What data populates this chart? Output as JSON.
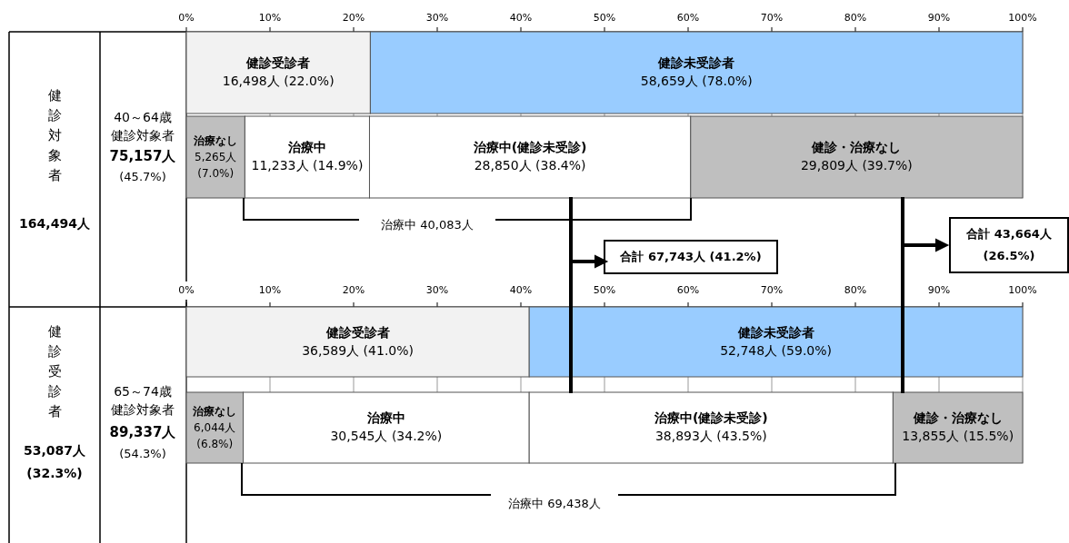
{
  "chart_data": [
    {
      "type": "bar",
      "orientation": "horizontal",
      "stacked": true,
      "categories": [
        null,
        null
      ],
      "xlim": [
        0,
        100
      ],
      "grid": "x",
      "xticks": [
        {
          "value": 0,
          "label": "0%"
        },
        {
          "value": 10,
          "label": "10%"
        },
        {
          "value": 20,
          "label": "20%"
        },
        {
          "value": 30,
          "label": "30%"
        },
        {
          "value": 40,
          "label": "40%"
        },
        {
          "value": 50,
          "label": "50%"
        },
        {
          "value": 60,
          "label": "60%"
        },
        {
          "value": 70,
          "label": "70%"
        },
        {
          "value": 80,
          "label": "80%"
        },
        {
          "value": 90,
          "label": "90%"
        },
        {
          "value": 100,
          "label": "100%"
        }
      ],
      "series": [
        {
          "name": "健診受診者",
          "color": "#f2f2f2",
          "values": [
            22.0,
            null
          ],
          "value_labels": [
            "16,498人 (22.0%)",
            null
          ]
        },
        {
          "name": "健診未受診者",
          "color": "#99ccff",
          "values": [
            78.0,
            null
          ],
          "value_labels": [
            "58,659人 (78.0%)",
            null
          ]
        },
        {
          "name": "治療なし",
          "color": "#bfbfbf",
          "values": [
            null,
            7.0
          ],
          "value_labels": [
            null,
            "5,265人 (7.0%)"
          ]
        },
        {
          "name": "治療中",
          "color": "#ffffff",
          "values": [
            null,
            14.9
          ],
          "value_labels": [
            null,
            "11,233人 (14.9%)"
          ]
        },
        {
          "name": "治療中(健診未受診)",
          "color": "#ffffff",
          "values": [
            null,
            38.4
          ],
          "value_labels": [
            null,
            "28,850人 (38.4%)"
          ]
        },
        {
          "name": "健診・治療なし",
          "color": "#bfbfbf",
          "values": [
            null,
            39.7
          ],
          "value_labels": [
            null,
            "29,809人 (39.7%)"
          ]
        }
      ],
      "annotations": [
        "健診対象者",
        "164,494人",
        "40～64歳",
        "健診対象者",
        "75,157人",
        "(45.7%)",
        "治療中 40,083人",
        "合計 67,743人 (41.2%)",
        "合計 43,664人 (26.5%)"
      ]
    },
    {
      "type": "bar",
      "orientation": "horizontal",
      "stacked": true,
      "categories": [
        null,
        null
      ],
      "xlim": [
        0,
        100
      ],
      "grid": "x",
      "xticks": [
        {
          "value": 0,
          "label": "0%"
        },
        {
          "value": 10,
          "label": "10%"
        },
        {
          "value": 20,
          "label": "20%"
        },
        {
          "value": 30,
          "label": "30%"
        },
        {
          "value": 40,
          "label": "40%"
        },
        {
          "value": 50,
          "label": "50%"
        },
        {
          "value": 60,
          "label": "60%"
        },
        {
          "value": 70,
          "label": "70%"
        },
        {
          "value": 80,
          "label": "80%"
        },
        {
          "value": 90,
          "label": "90%"
        },
        {
          "value": 100,
          "label": "100%"
        }
      ],
      "series": [
        {
          "name": "健診受診者",
          "color": "#f2f2f2",
          "values": [
            41.0,
            null
          ],
          "value_labels": [
            "36,589人 (41.0%)",
            null
          ]
        },
        {
          "name": "健診未受診者",
          "color": "#99ccff",
          "values": [
            59.0,
            null
          ],
          "value_labels": [
            "52,748人 (59.0%)",
            null
          ]
        },
        {
          "name": "治療なし",
          "color": "#bfbfbf",
          "values": [
            null,
            6.8
          ],
          "value_labels": [
            null,
            "6,044人 (6.8%)"
          ]
        },
        {
          "name": "治療中",
          "color": "#ffffff",
          "values": [
            null,
            34.2
          ],
          "value_labels": [
            null,
            "30,545人 (34.2%)"
          ]
        },
        {
          "name": "治療中(健診未受診)",
          "color": "#ffffff",
          "values": [
            null,
            43.5
          ],
          "value_labels": [
            null,
            "38,893人 (43.5%)"
          ]
        },
        {
          "name": "健診・治療なし",
          "color": "#bfbfbf",
          "values": [
            null,
            15.5
          ],
          "value_labels": [
            null,
            "13,855人 (15.5%)"
          ]
        }
      ],
      "annotations": [
        "健診受診者",
        "53,087人",
        "(32.3%)",
        "65～74歳",
        "健診対象者",
        "89,337人",
        "(54.3%)",
        "治療中 69,438人"
      ]
    }
  ]
}
